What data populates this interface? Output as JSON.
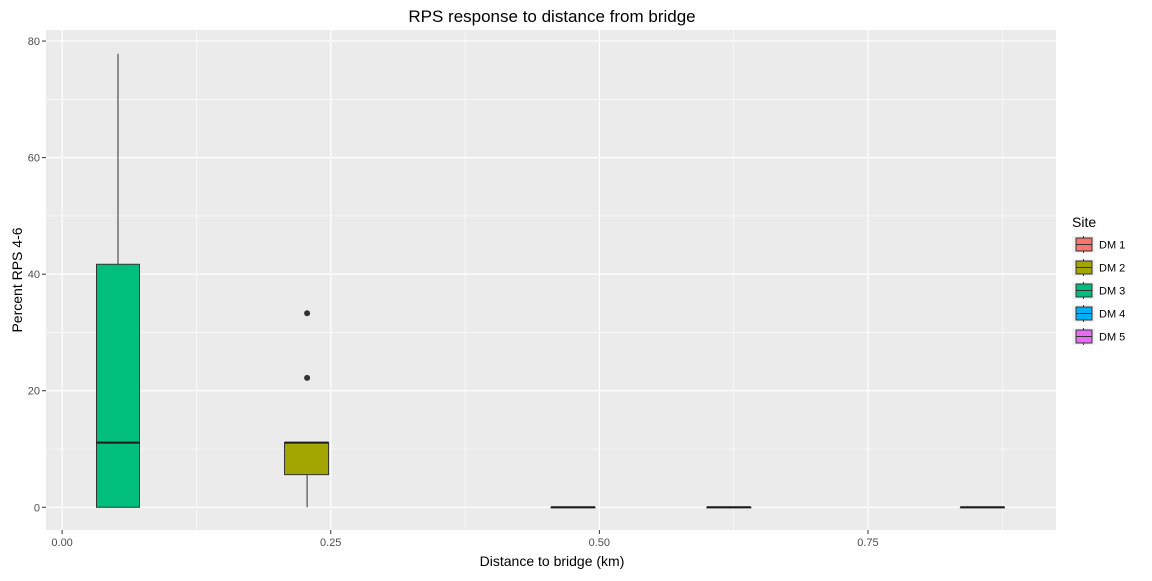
{
  "chart_data": {
    "type": "box",
    "title": "RPS response to distance from bridge",
    "xlabel": "Distance to bridge (km)",
    "ylabel": "Percent RPS 4-6",
    "xlim": [
      -0.015,
      0.925
    ],
    "ylim": [
      -3.9,
      81.9
    ],
    "x_ticks": [
      0.0,
      0.25,
      0.5,
      0.75
    ],
    "x_tick_labels": [
      "0.00",
      "0.25",
      "0.50",
      "0.75"
    ],
    "x_minor_ticks": [
      0.125,
      0.375,
      0.625,
      0.875
    ],
    "y_ticks": [
      0,
      20,
      40,
      60,
      80
    ],
    "y_tick_labels": [
      "0",
      "20",
      "40",
      "60",
      "80"
    ],
    "y_minor_ticks": [
      10,
      30,
      50,
      70
    ],
    "background": "#ebebeb",
    "grid": true,
    "legend": {
      "title": "Site",
      "position": "right",
      "entries": [
        {
          "label": "DM 1",
          "color": "#f8766d"
        },
        {
          "label": "DM 2",
          "color": "#a3a500"
        },
        {
          "label": "DM 3",
          "color": "#00bf7d"
        },
        {
          "label": "DM 4",
          "color": "#00b0f6"
        },
        {
          "label": "DM 5",
          "color": "#e76bf3"
        }
      ]
    },
    "series": [
      {
        "name": "DM 3",
        "color": "#00bf7d",
        "x": 0.052,
        "x_range": [
          0.032,
          0.072
        ],
        "min": 0,
        "q1": 0,
        "median": 11.1,
        "q3": 41.7,
        "max": 77.8,
        "outliers": []
      },
      {
        "name": "DM 2",
        "color": "#a3a500",
        "x": 0.228,
        "x_range": [
          0.207,
          0.248
        ],
        "min": 0,
        "q1": 5.6,
        "median": 11.1,
        "q3": 11.1,
        "max": 11.1,
        "outliers": [
          22.2,
          33.3
        ]
      },
      {
        "name": "DM 4",
        "color": "#00b0f6",
        "x": 0.476,
        "x_range": [
          0.455,
          0.496
        ],
        "min": 0,
        "q1": 0,
        "median": 0,
        "q3": 0,
        "max": 0,
        "outliers": []
      },
      {
        "name": "DM 1",
        "color": "#f8766d",
        "x": 0.62,
        "x_range": [
          0.6,
          0.641
        ],
        "min": 0,
        "q1": 0,
        "median": 0,
        "q3": 0,
        "max": 0,
        "outliers": []
      },
      {
        "name": "DM 5",
        "color": "#e76bf3",
        "x": 0.856,
        "x_range": [
          0.836,
          0.877
        ],
        "min": 0,
        "q1": 0,
        "median": 0,
        "q3": 0,
        "max": 0,
        "outliers": []
      }
    ]
  }
}
